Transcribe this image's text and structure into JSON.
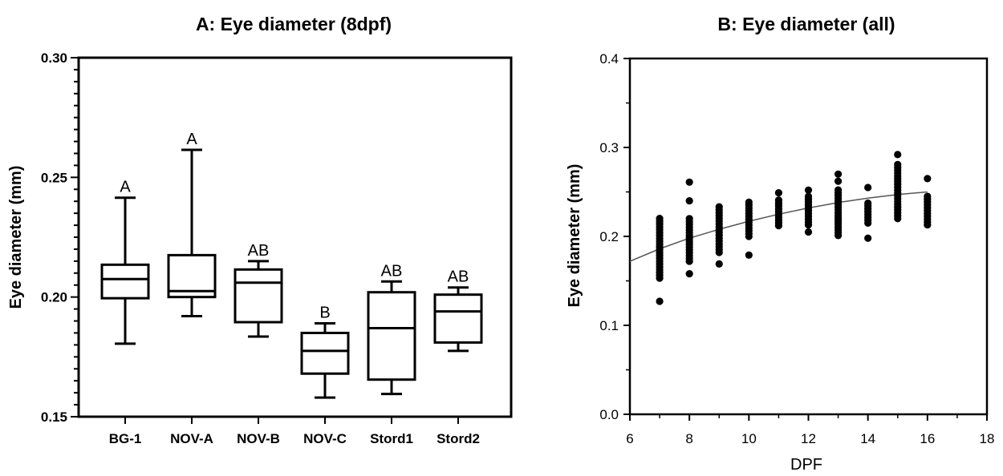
{
  "colors": {
    "ink": "#000000",
    "fit_line": "#555555",
    "background": "#ffffff"
  },
  "chart_data": [
    {
      "type": "box",
      "title": "A: Eye diameter (8dpf)",
      "xlabel": "",
      "ylabel": "Eye diameter (mm)",
      "ylim": [
        0.15,
        0.3
      ],
      "yticks": [
        "0.15",
        "0.20",
        "0.25",
        "0.30"
      ],
      "categories": [
        "BG-1",
        "NOV-A",
        "NOV-B",
        "NOV-C",
        "Stord1",
        "Stord2"
      ],
      "boxes": [
        {
          "min": 0.1805,
          "q1": 0.1995,
          "median": 0.2075,
          "q3": 0.2135,
          "max": 0.2415,
          "group_letter": "A"
        },
        {
          "min": 0.192,
          "q1": 0.2,
          "median": 0.2025,
          "q3": 0.2175,
          "max": 0.2615,
          "group_letter": "A"
        },
        {
          "min": 0.1835,
          "q1": 0.1895,
          "median": 0.206,
          "q3": 0.2115,
          "max": 0.215,
          "group_letter": "AB"
        },
        {
          "min": 0.158,
          "q1": 0.168,
          "median": 0.1775,
          "q3": 0.185,
          "max": 0.189,
          "group_letter": "B"
        },
        {
          "min": 0.1595,
          "q1": 0.1655,
          "median": 0.187,
          "q3": 0.202,
          "max": 0.2065,
          "group_letter": "AB"
        },
        {
          "min": 0.1775,
          "q1": 0.181,
          "median": 0.194,
          "q3": 0.201,
          "max": 0.204,
          "group_letter": "AB"
        }
      ],
      "grid": false,
      "legend": "none"
    },
    {
      "type": "scatter",
      "title": "B: Eye diameter (all)",
      "xlabel": "DPF",
      "ylabel": "Eye diameter (mm)",
      "xlim": [
        6,
        18
      ],
      "ylim": [
        0.0,
        0.4
      ],
      "xticks": [
        "6",
        "8",
        "10",
        "12",
        "14",
        "16",
        "18"
      ],
      "yticks": [
        "0.0",
        "0.1",
        "0.2",
        "0.3",
        "0.4"
      ],
      "columns": [
        {
          "x": 7,
          "y_min": 0.153,
          "y_max": 0.222,
          "outliers": [
            0.127
          ]
        },
        {
          "x": 8,
          "y_min": 0.172,
          "y_max": 0.222,
          "outliers": [
            0.158,
            0.24,
            0.261
          ]
        },
        {
          "x": 9,
          "y_min": 0.182,
          "y_max": 0.235,
          "outliers": [
            0.169
          ]
        },
        {
          "x": 10,
          "y_min": 0.2,
          "y_max": 0.24,
          "outliers": [
            0.179
          ]
        },
        {
          "x": 11,
          "y_min": 0.212,
          "y_max": 0.242,
          "outliers": [
            0.249
          ]
        },
        {
          "x": 12,
          "y_min": 0.213,
          "y_max": 0.245,
          "outliers": [
            0.205,
            0.252
          ]
        },
        {
          "x": 13,
          "y_min": 0.201,
          "y_max": 0.255,
          "outliers": [
            0.27,
            0.262
          ]
        },
        {
          "x": 14,
          "y_min": 0.215,
          "y_max": 0.24,
          "outliers": [
            0.198,
            0.255
          ]
        },
        {
          "x": 15,
          "y_min": 0.22,
          "y_max": 0.282,
          "outliers": [
            0.292
          ]
        },
        {
          "x": 16,
          "y_min": 0.213,
          "y_max": 0.245,
          "outliers": [
            0.265
          ]
        }
      ],
      "fit_curve": {
        "x": [
          6,
          7,
          8,
          9,
          10,
          11,
          12,
          13,
          14,
          15,
          16
        ],
        "y": [
          0.172,
          0.186,
          0.198,
          0.208,
          0.217,
          0.225,
          0.232,
          0.238,
          0.243,
          0.247,
          0.25
        ]
      },
      "grid": false,
      "legend": "none"
    }
  ]
}
